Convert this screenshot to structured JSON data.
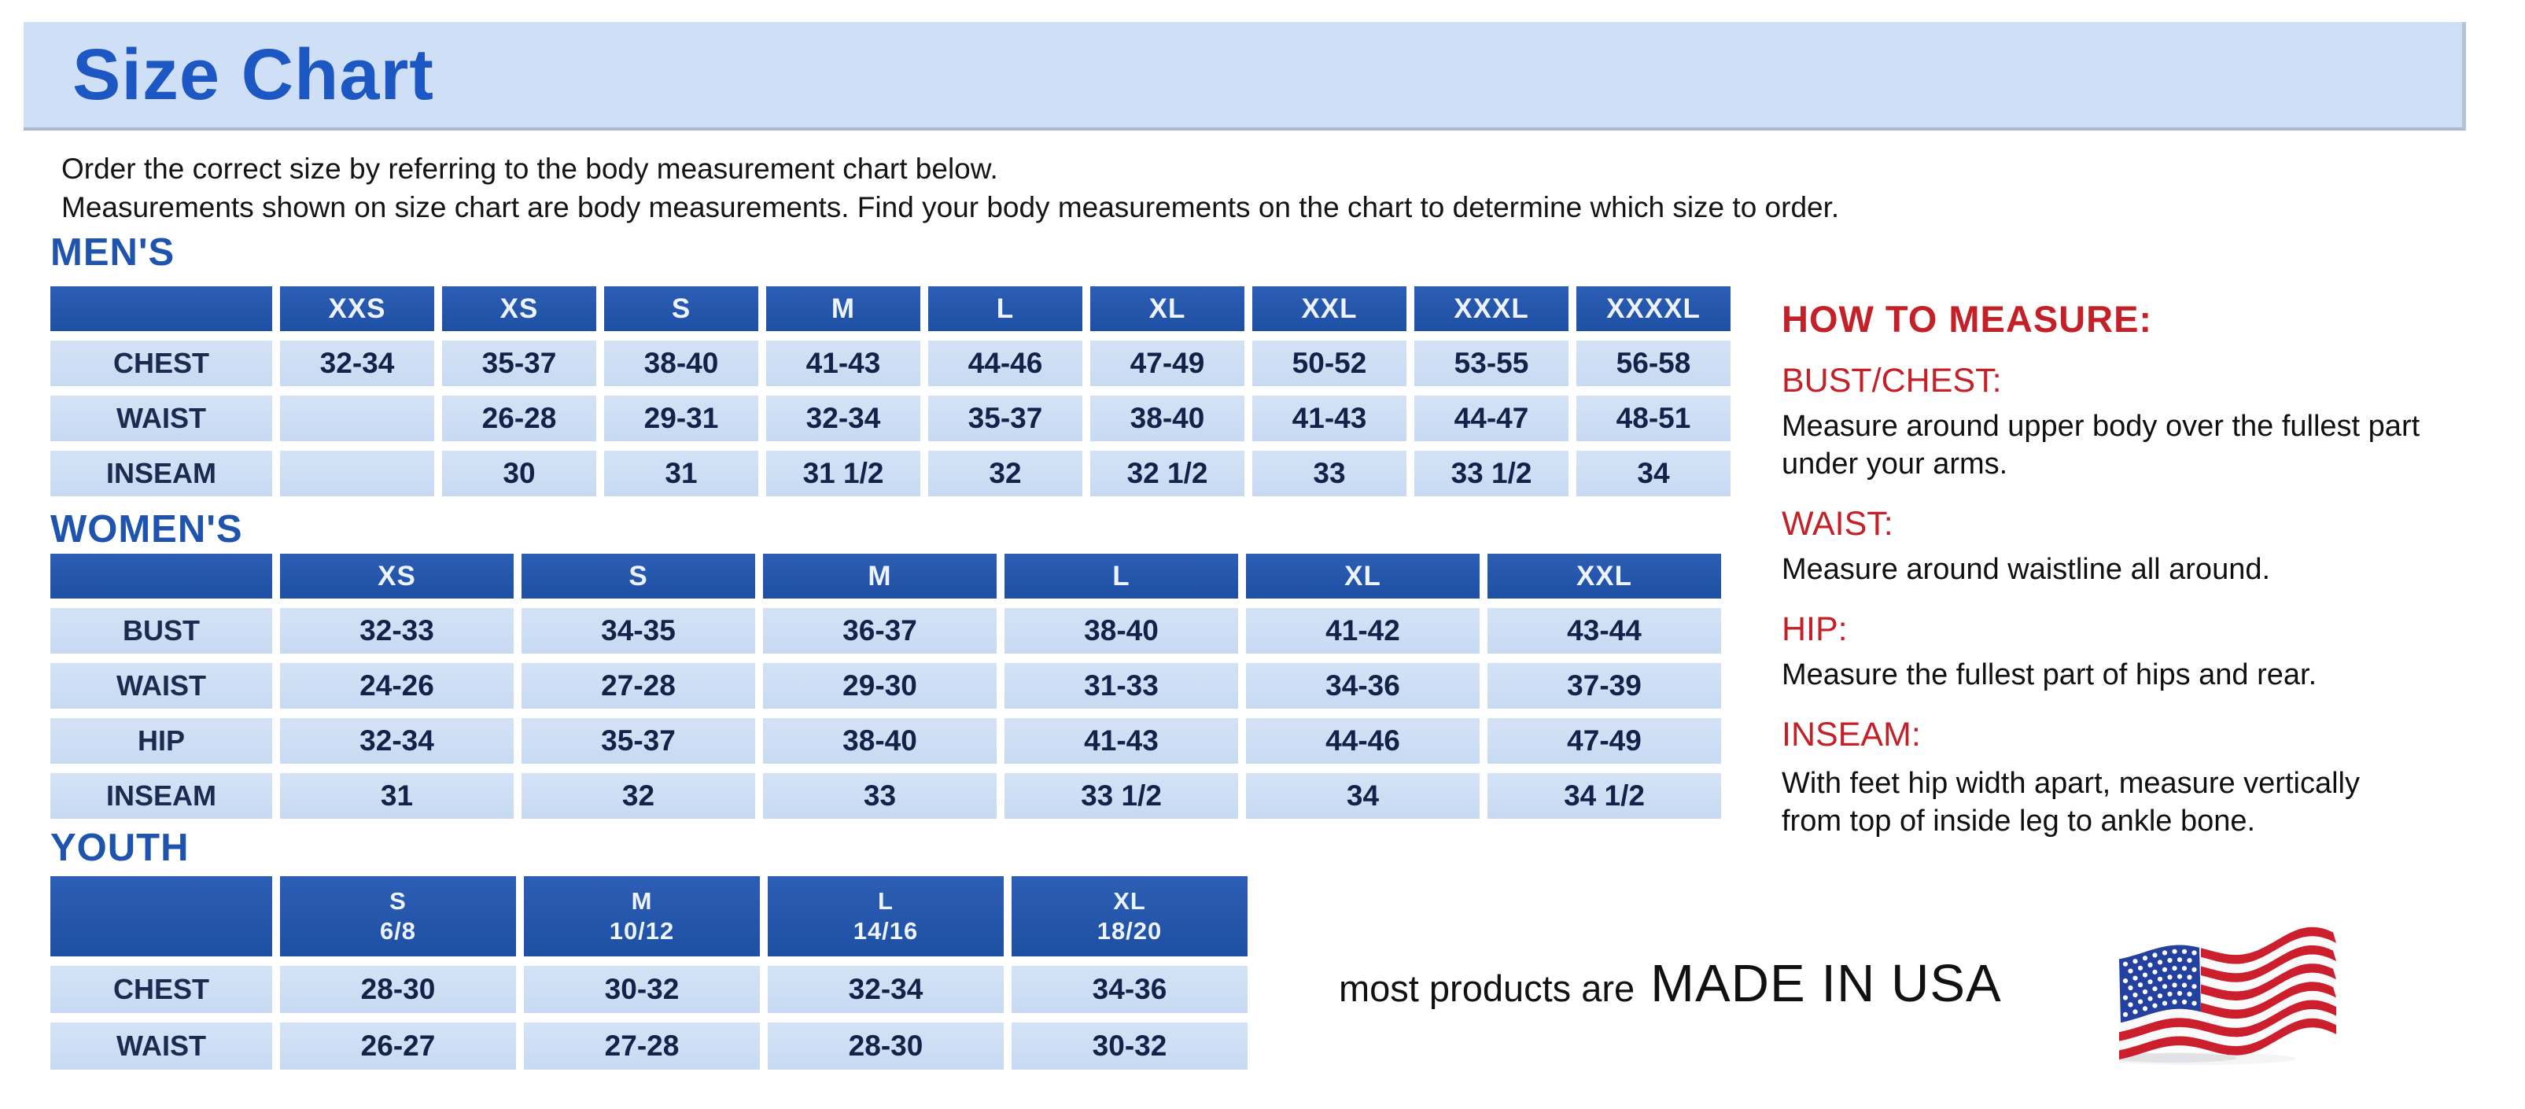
{
  "title": "Size Chart",
  "intro": [
    "Order the correct size by referring to the body measurement chart below.",
    "Measurements shown on size chart are body measurements.  Find your body measurements on the chart to determine which size to order."
  ],
  "tables": [
    {
      "heading": "MEN'S",
      "columns": [
        "XXS",
        "XS",
        "S",
        "M",
        "L",
        "XL",
        "XXL",
        "XXXL",
        "XXXXL"
      ],
      "rows": [
        {
          "label": "CHEST",
          "values": [
            "32-34",
            "35-37",
            "38-40",
            "41-43",
            "44-46",
            "47-49",
            "50-52",
            "53-55",
            "56-58"
          ]
        },
        {
          "label": "WAIST",
          "values": [
            "",
            "26-28",
            "29-31",
            "32-34",
            "35-37",
            "38-40",
            "41-43",
            "44-47",
            "48-51"
          ]
        },
        {
          "label": "INSEAM",
          "values": [
            "",
            "30",
            "31",
            "31 1/2",
            "32",
            "32 1/2",
            "33",
            "33 1/2",
            "34"
          ]
        }
      ]
    },
    {
      "heading": "WOMEN'S",
      "columns": [
        "XS",
        "S",
        "M",
        "L",
        "XL",
        "XXL"
      ],
      "rows": [
        {
          "label": "BUST",
          "values": [
            "32-33",
            "34-35",
            "36-37",
            "38-40",
            "41-42",
            "43-44"
          ]
        },
        {
          "label": "WAIST",
          "values": [
            "24-26",
            "27-28",
            "29-30",
            "31-33",
            "34-36",
            "37-39"
          ]
        },
        {
          "label": "HIP",
          "values": [
            "32-34",
            "35-37",
            "38-40",
            "41-43",
            "44-46",
            "47-49"
          ]
        },
        {
          "label": "INSEAM",
          "values": [
            "31",
            "32",
            "33",
            "33 1/2",
            "34",
            "34 1/2"
          ]
        }
      ]
    },
    {
      "heading": "YOUTH",
      "columns": [
        "S\n6/8",
        "M\n10/12",
        "L\n14/16",
        "XL\n18/20"
      ],
      "rows": [
        {
          "label": "CHEST",
          "values": [
            "28-30",
            "30-32",
            "32-34",
            "34-36"
          ]
        },
        {
          "label": "WAIST",
          "values": [
            "26-27",
            "27-28",
            "28-30",
            "30-32"
          ]
        }
      ]
    }
  ],
  "how_to_measure": {
    "heading": "HOW TO MEASURE:",
    "sections": [
      {
        "label": "BUST/CHEST:",
        "text": "Measure around upper body over the fullest part under your arms."
      },
      {
        "label": "WAIST:",
        "text": "Measure around waistline all around."
      },
      {
        "label": "HIP:",
        "text": "Measure the fullest part of hips and rear."
      },
      {
        "label": "INSEAM:",
        "text": "With feet hip width apart, measure vertically from top of inside leg to ankle bone."
      }
    ]
  },
  "footer": {
    "prefix": "most products are",
    "emphasis": "MADE IN USA"
  },
  "icons": {
    "flag": "us-flag-icon"
  },
  "colors": {
    "banner_bg": "#cfe0f6",
    "title_blue": "#1c57c4",
    "heading_blue": "#1e53ae",
    "header_blue": "#1d4fa3",
    "cell_blue": "#c7daf2",
    "navy_text": "#132248",
    "red": "#c32028",
    "flag_red": "#cc1f2d",
    "flag_navy": "#24419f"
  }
}
